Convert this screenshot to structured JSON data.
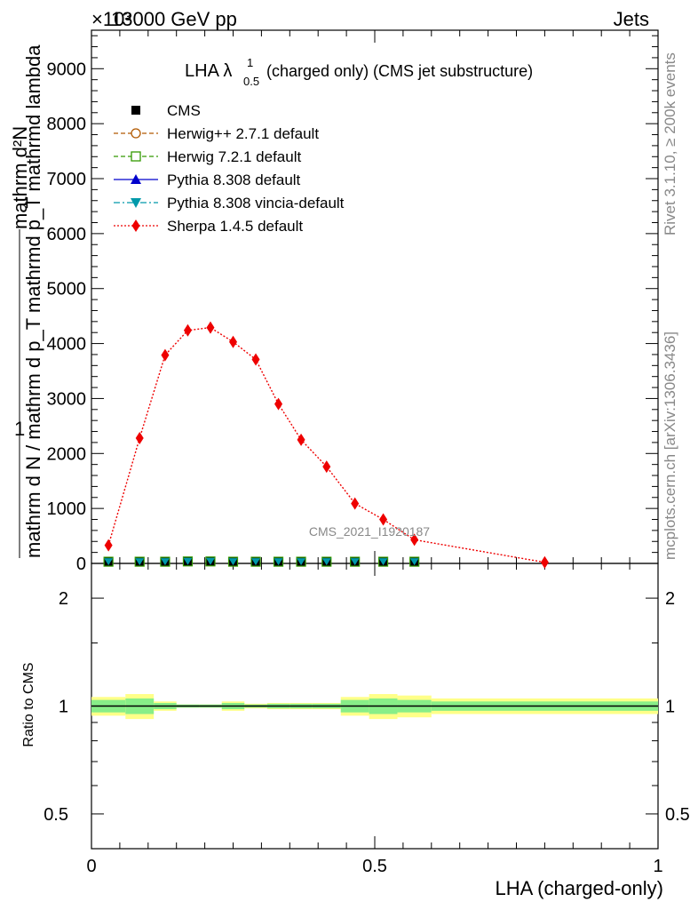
{
  "header": {
    "left": "13000 GeV pp",
    "right": "Jets",
    "exponent": "×10³"
  },
  "side": {
    "events": "Rivet 3.1.10, ≥ 200k events",
    "source": "mcplots.cern.ch [arXiv:1306.3436]"
  },
  "main": {
    "title_prefix": "LHA λ",
    "title_sup": "1",
    "title_sub": "0.5",
    "title_suffix": "(charged only) (CMS jet substructure)",
    "watermark": "CMS_2021_I1920187",
    "ylabel_num": "1",
    "ylabel_den": "mathrm d N / mathrm d p_T mathrmd p_T mathrmd lambda",
    "ylabel_sub": "mathrm d²N",
    "ylabel_sub_T": "T",
    "ytick_labels": [
      "0",
      "1000",
      "2000",
      "3000",
      "4000",
      "5000",
      "6000",
      "7000",
      "8000",
      "9000"
    ]
  },
  "ratio": {
    "ylabel": "Ratio to CMS",
    "ytick_labels": [
      "0.5",
      "1",
      "2"
    ]
  },
  "xaxis": {
    "label": "LHA (charged-only)",
    "tick_labels": [
      "0",
      "0.5",
      "1"
    ]
  },
  "legend": [
    {
      "label": "CMS",
      "color": "#000000",
      "marker": "square-filled",
      "line": "none"
    },
    {
      "label": "Herwig++ 2.7.1 default",
      "color": "#b25900",
      "marker": "circle-open",
      "line": "dashed"
    },
    {
      "label": "Herwig 7.2.1 default",
      "color": "#339900",
      "marker": "square-open",
      "line": "dashed"
    },
    {
      "label": "Pythia 8.308 default",
      "color": "#0000cc",
      "marker": "triangle-up",
      "line": "solid"
    },
    {
      "label": "Pythia 8.308 vincia-default",
      "color": "#0099aa",
      "marker": "triangle-down",
      "line": "dashdot"
    },
    {
      "label": "Sherpa 1.4.5 default",
      "color": "#ee0000",
      "marker": "diamond",
      "line": "dotted"
    }
  ],
  "chart_data": {
    "type": "line",
    "title": "LHA λ^1_0.5 (charged only) (CMS jet substructure)",
    "xlabel": "LHA (charged-only)",
    "ylabel": "1 / mathrm d N / mathrm d p_T mathrmd p_T mathrmd lambda · mathrm d²N",
    "xlim": [
      0,
      1
    ],
    "ylim": [
      0,
      9700
    ],
    "ratio_ylim": [
      0.4,
      2.5
    ],
    "bin_edges": [
      0,
      0.06,
      0.11,
      0.15,
      0.19,
      0.23,
      0.27,
      0.31,
      0.35,
      0.39,
      0.44,
      0.49,
      0.54,
      0.6,
      1.0
    ],
    "x": [
      0.03,
      0.085,
      0.13,
      0.17,
      0.21,
      0.25,
      0.29,
      0.33,
      0.37,
      0.415,
      0.465,
      0.515,
      0.57,
      0.8
    ],
    "series": [
      {
        "name": "CMS",
        "values": [
          15,
          15,
          15,
          20,
          20,
          15,
          15,
          15,
          15,
          15,
          15,
          15,
          15,
          null
        ]
      },
      {
        "name": "Sherpa 1.4.5 default",
        "values": [
          330,
          2280,
          3790,
          4240,
          4290,
          4030,
          3710,
          2900,
          2250,
          1760,
          1090,
          800,
          430,
          20
        ],
        "errors": [
          60,
          80,
          90,
          100,
          100,
          95,
          90,
          80,
          75,
          65,
          50,
          45,
          35,
          10
        ]
      }
    ],
    "ratio_band_inner": [
      0.04,
      0.05,
      0.02,
      0.01,
      0.01,
      0.02,
      0.01,
      0.015,
      0.015,
      0.015,
      0.04,
      0.05,
      0.04,
      0.03
    ],
    "ratio_band_outer": [
      0.06,
      0.08,
      0.03,
      0.01,
      0.01,
      0.03,
      0.015,
      0.02,
      0.02,
      0.02,
      0.06,
      0.08,
      0.07,
      0.05
    ],
    "watermark": "CMS_2021_I1920187"
  }
}
